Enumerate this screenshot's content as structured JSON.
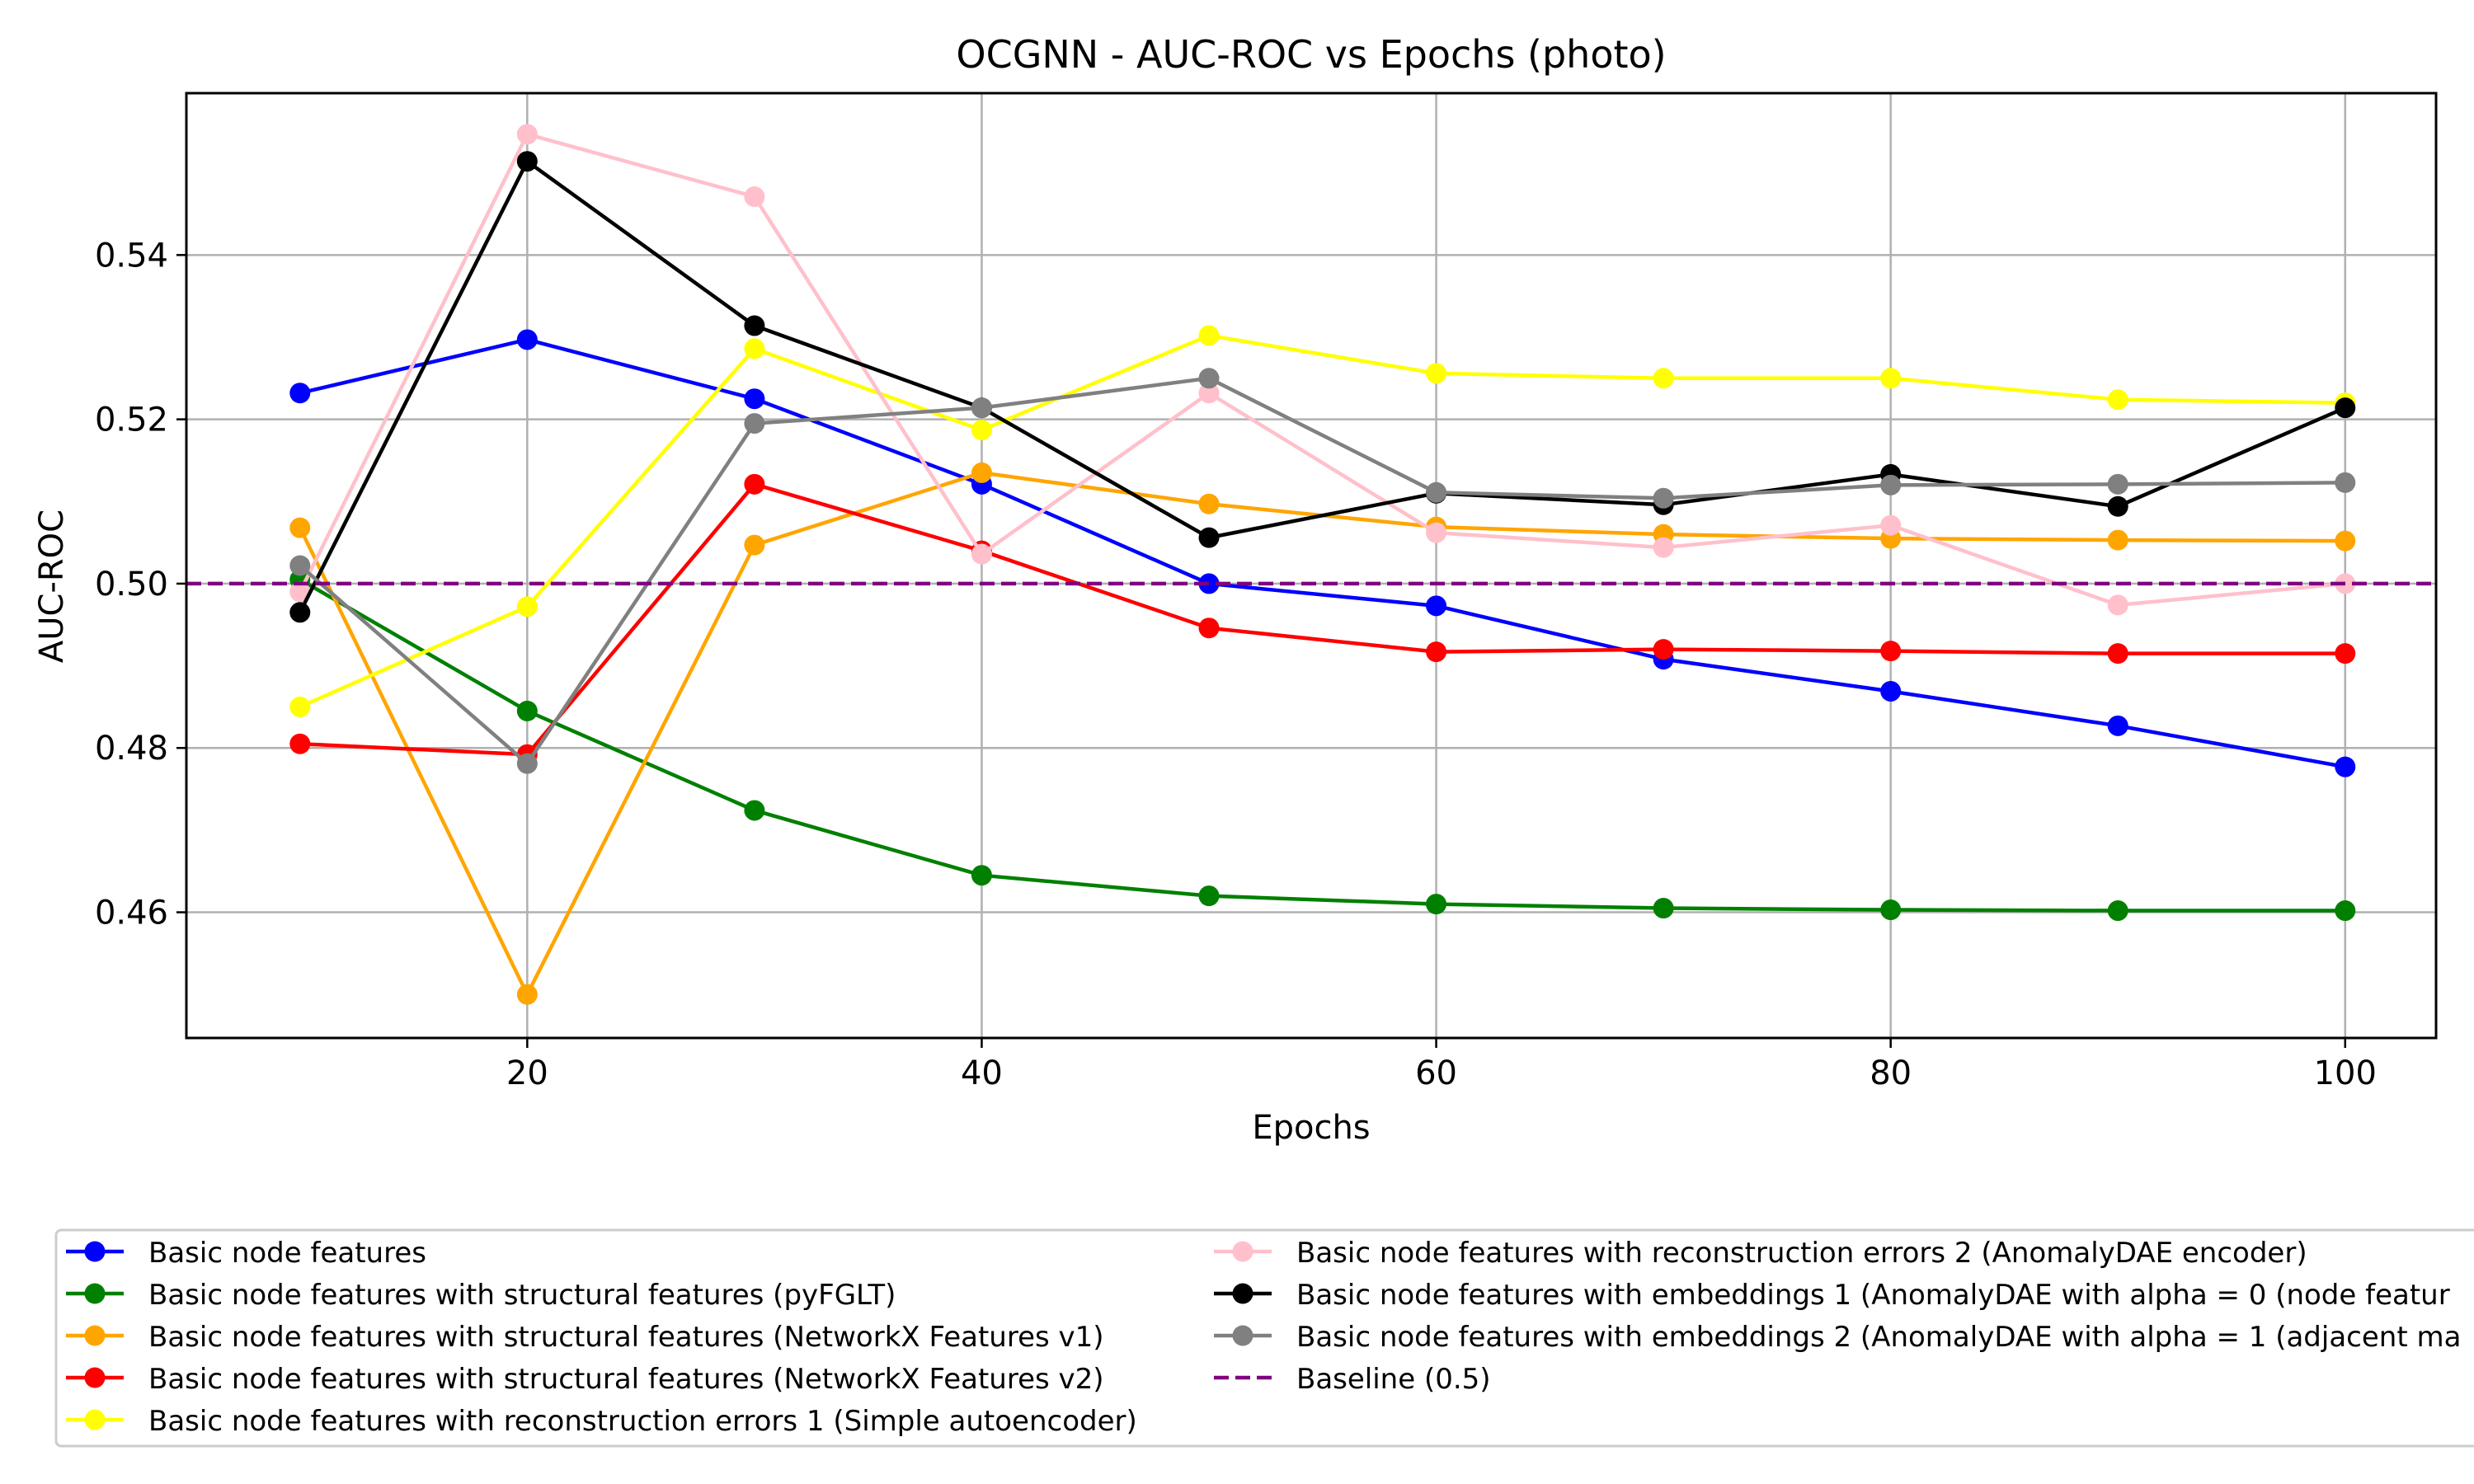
{
  "chart_data": {
    "type": "line",
    "title": "OCGNN - AUC-ROC vs Epochs (photo)",
    "xlabel": "Epochs",
    "ylabel": "AUC-ROC",
    "x": [
      10,
      20,
      30,
      40,
      50,
      60,
      70,
      80,
      90,
      100
    ],
    "xlim": [
      5,
      104
    ],
    "ylim": [
      0.4447,
      0.5597
    ],
    "xticks": [
      20,
      40,
      60,
      80,
      100
    ],
    "yticks": [
      0.46,
      0.48,
      0.5,
      0.52,
      0.54
    ],
    "ytick_labels": [
      "0.46",
      "0.48",
      "0.50",
      "0.52",
      "0.54"
    ],
    "grid": true,
    "legend_position": "bottom",
    "series": [
      {
        "name": "Basic node features",
        "color": "#0000ff",
        "values": [
          0.5232,
          0.5297,
          0.5225,
          0.5121,
          0.5,
          0.4973,
          0.4908,
          0.4869,
          0.4827,
          0.4777
        ]
      },
      {
        "name": "Basic node features with structural features (pyFGLT)",
        "color": "#008000",
        "values": [
          0.5005,
          0.4845,
          0.4724,
          0.4645,
          0.462,
          0.461,
          0.4605,
          0.4603,
          0.4602,
          0.4602
        ]
      },
      {
        "name": "Basic node features with structural features (NetworkX Features v1)",
        "color": "#ffa500",
        "values": [
          0.5068,
          0.45,
          0.5047,
          0.5135,
          0.5097,
          0.5069,
          0.506,
          0.5055,
          0.5053,
          0.5052
        ]
      },
      {
        "name": "Basic node features with structural features (NetworkX Features v2)",
        "color": "#ff0000",
        "values": [
          0.4805,
          0.4792,
          0.5121,
          0.504,
          0.4946,
          0.4917,
          0.492,
          0.4918,
          0.4915,
          0.4915
        ]
      },
      {
        "name": "Basic node features with reconstruction errors 1 (Simple autoencoder)",
        "color": "#ffff00",
        "values": [
          0.485,
          0.4972,
          0.5286,
          0.5187,
          0.5302,
          0.5256,
          0.525,
          0.525,
          0.5224,
          0.522
        ]
      },
      {
        "name": "Basic node features with reconstruction errors 2 (AnomalyDAE encoder)",
        "color": "#ffc0cb",
        "values": [
          0.499,
          0.5547,
          0.5471,
          0.5036,
          0.5232,
          0.5062,
          0.5044,
          0.5071,
          0.4974,
          0.5
        ]
      },
      {
        "name": "Basic node features with embeddings 1 (AnomalyDAE with alpha = 0 (node featur",
        "color": "#000000",
        "values": [
          0.4965,
          0.5514,
          0.5314,
          0.5214,
          0.5056,
          0.511,
          0.5096,
          0.5133,
          0.5094,
          0.5214
        ]
      },
      {
        "name": "Basic node features with embeddings 2 (AnomalyDAE with alpha = 1 (adjacent ma",
        "color": "#808080",
        "values": [
          0.5022,
          0.4781,
          0.5195,
          0.5214,
          0.525,
          0.5111,
          0.5104,
          0.512,
          0.5121,
          0.5123
        ]
      }
    ],
    "baseline": {
      "name": "Baseline (0.5)",
      "value": 0.5,
      "color": "#800080",
      "style": "dashed"
    }
  }
}
